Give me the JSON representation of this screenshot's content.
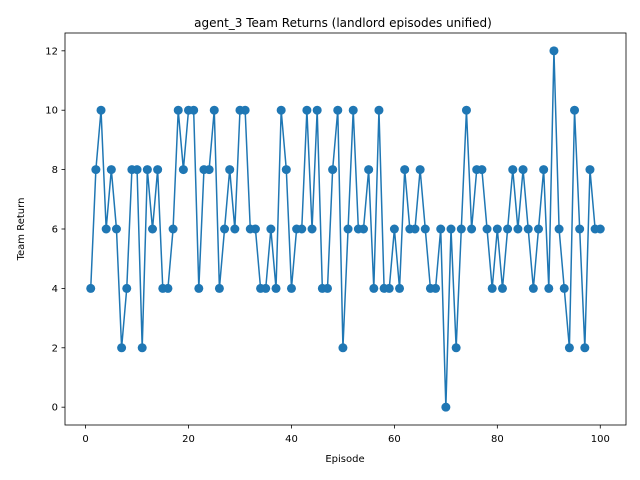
{
  "chart_data": {
    "type": "line",
    "title": "agent_3 Team Returns (landlord episodes unified)",
    "xlabel": "Episode",
    "ylabel": "Team Return",
    "xlim": [
      -4,
      105
    ],
    "ylim": [
      -0.6,
      12.6
    ],
    "xticks": [
      0,
      20,
      40,
      60,
      80,
      100
    ],
    "yticks": [
      0,
      2,
      4,
      6,
      8,
      10,
      12
    ],
    "grid": false,
    "marker": "circle",
    "color": "#1f77b4",
    "series": [
      {
        "x": [
          1,
          2,
          3,
          4,
          5,
          6,
          7,
          8,
          9,
          10,
          11,
          12,
          13,
          14,
          15,
          16,
          17,
          18,
          19,
          20,
          21,
          22,
          23,
          24,
          25,
          26,
          27,
          28,
          29,
          30,
          31,
          32,
          33,
          34,
          35,
          36,
          37,
          38,
          39,
          40,
          41,
          42,
          43,
          44,
          45,
          46,
          47,
          48,
          49,
          50,
          51,
          52,
          53,
          54,
          55,
          56,
          57,
          58,
          59,
          60,
          61,
          62,
          63,
          64,
          65,
          66,
          67,
          68,
          69,
          70,
          71,
          72,
          73,
          74,
          75,
          76,
          77,
          78,
          79,
          80,
          81,
          82,
          83,
          84,
          85,
          86,
          87,
          88,
          89,
          90,
          91,
          92,
          93,
          94,
          95,
          96,
          97,
          98,
          99,
          100
        ],
        "values": [
          4,
          8,
          10,
          6,
          8,
          6,
          2,
          4,
          8,
          8,
          2,
          8,
          6,
          8,
          4,
          4,
          6,
          10,
          8,
          10,
          10,
          4,
          8,
          8,
          10,
          4,
          6,
          8,
          6,
          10,
          10,
          6,
          6,
          4,
          4,
          6,
          4,
          10,
          8,
          4,
          6,
          6,
          10,
          6,
          10,
          4,
          4,
          8,
          10,
          2,
          6,
          10,
          6,
          6,
          8,
          4,
          10,
          4,
          4,
          6,
          4,
          8,
          6,
          6,
          8,
          6,
          4,
          4,
          6,
          0,
          6,
          2,
          6,
          10,
          6,
          8,
          8,
          6,
          4,
          6,
          4,
          6,
          8,
          6,
          8,
          6,
          4,
          6,
          8,
          4,
          12,
          6,
          4,
          2,
          10,
          6,
          2,
          8,
          6,
          6
        ]
      }
    ]
  }
}
